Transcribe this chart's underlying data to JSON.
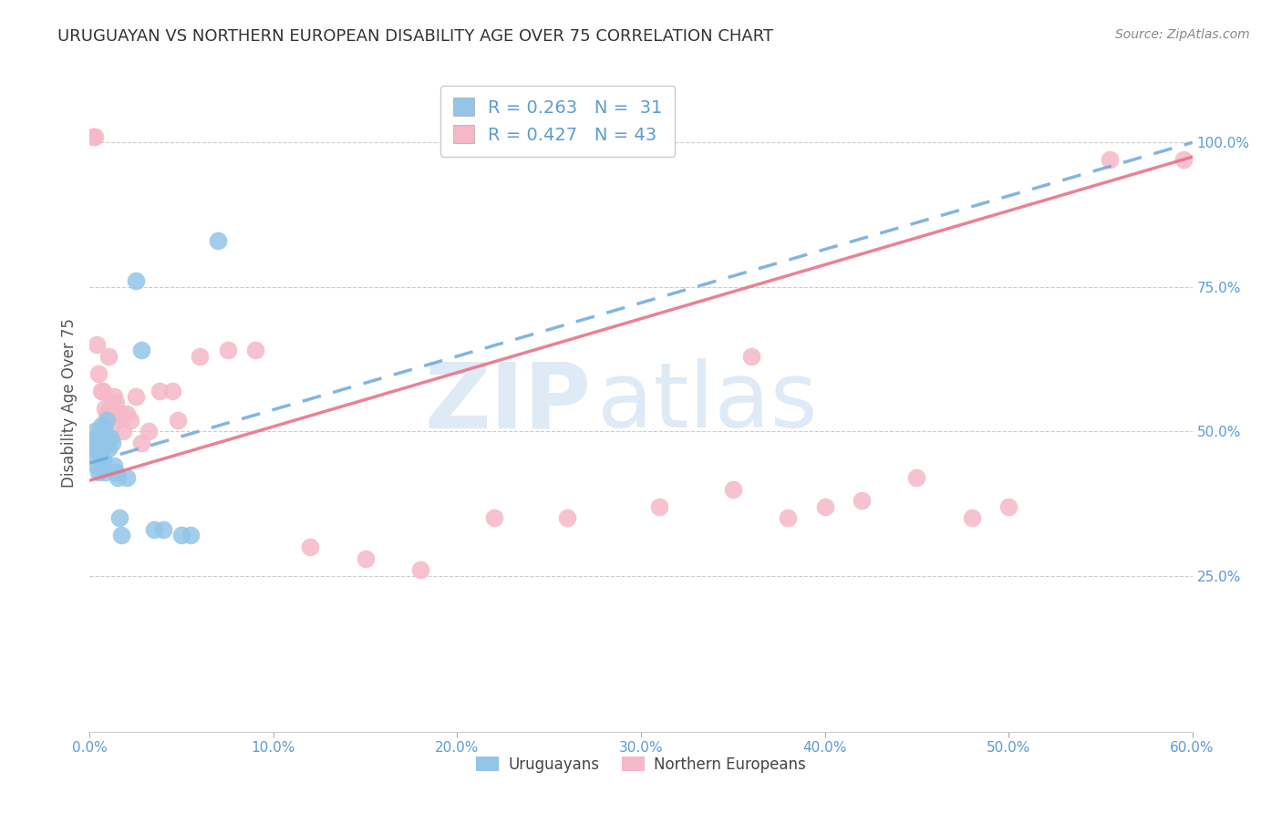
{
  "title": "URUGUAYAN VS NORTHERN EUROPEAN DISABILITY AGE OVER 75 CORRELATION CHART",
  "source": "Source: ZipAtlas.com",
  "ylabel": "Disability Age Over 75",
  "xlim": [
    0.0,
    0.6
  ],
  "ylim": [
    -0.02,
    1.12
  ],
  "legend_blue_r": "R = 0.263",
  "legend_blue_n": "N =  31",
  "legend_pink_r": "R = 0.427",
  "legend_pink_n": "N = 43",
  "uruguayan_x": [
    0.001,
    0.002,
    0.003,
    0.003,
    0.004,
    0.004,
    0.005,
    0.005,
    0.006,
    0.006,
    0.007,
    0.007,
    0.008,
    0.008,
    0.009,
    0.01,
    0.011,
    0.012,
    0.013,
    0.014,
    0.015,
    0.016,
    0.017,
    0.02,
    0.025,
    0.028,
    0.035,
    0.04,
    0.05,
    0.055,
    0.07
  ],
  "uruguayan_y": [
    0.48,
    0.47,
    0.5,
    0.46,
    0.49,
    0.44,
    0.47,
    0.43,
    0.51,
    0.46,
    0.45,
    0.48,
    0.5,
    0.43,
    0.52,
    0.47,
    0.49,
    0.48,
    0.44,
    0.43,
    0.42,
    0.35,
    0.32,
    0.42,
    0.76,
    0.64,
    0.33,
    0.33,
    0.32,
    0.32,
    0.83
  ],
  "northern_european_x": [
    0.002,
    0.003,
    0.004,
    0.005,
    0.006,
    0.007,
    0.008,
    0.009,
    0.01,
    0.011,
    0.012,
    0.013,
    0.014,
    0.015,
    0.016,
    0.018,
    0.02,
    0.022,
    0.025,
    0.028,
    0.032,
    0.038,
    0.045,
    0.048,
    0.06,
    0.075,
    0.09,
    0.12,
    0.15,
    0.18,
    0.22,
    0.26,
    0.31,
    0.35,
    0.36,
    0.38,
    0.4,
    0.42,
    0.45,
    0.48,
    0.5,
    0.555,
    0.595
  ],
  "northern_european_y": [
    1.01,
    1.01,
    0.65,
    0.6,
    0.57,
    0.57,
    0.54,
    0.53,
    0.63,
    0.54,
    0.55,
    0.56,
    0.55,
    0.52,
    0.53,
    0.5,
    0.53,
    0.52,
    0.56,
    0.48,
    0.5,
    0.57,
    0.57,
    0.52,
    0.63,
    0.64,
    0.64,
    0.3,
    0.28,
    0.26,
    0.35,
    0.35,
    0.37,
    0.4,
    0.63,
    0.35,
    0.37,
    0.38,
    0.42,
    0.35,
    0.37,
    0.97,
    0.97
  ],
  "blue_color": "#92C5E8",
  "pink_color": "#F5B8C8",
  "blue_line_color": "#6CA8DC",
  "pink_line_color": "#E8738A",
  "blue_trendline_x0": 0.0,
  "blue_trendline_y0": 0.445,
  "blue_trendline_x1": 0.6,
  "blue_trendline_y1": 1.0,
  "pink_trendline_x0": 0.0,
  "pink_trendline_y0": 0.415,
  "pink_trendline_x1": 0.6,
  "pink_trendline_y1": 0.975,
  "background_color": "#FFFFFF",
  "grid_color": "#CCCCCC",
  "title_color": "#333333",
  "axis_label_color": "#5B9BD5",
  "watermark_zip": "ZIP",
  "watermark_atlas": "atlas"
}
